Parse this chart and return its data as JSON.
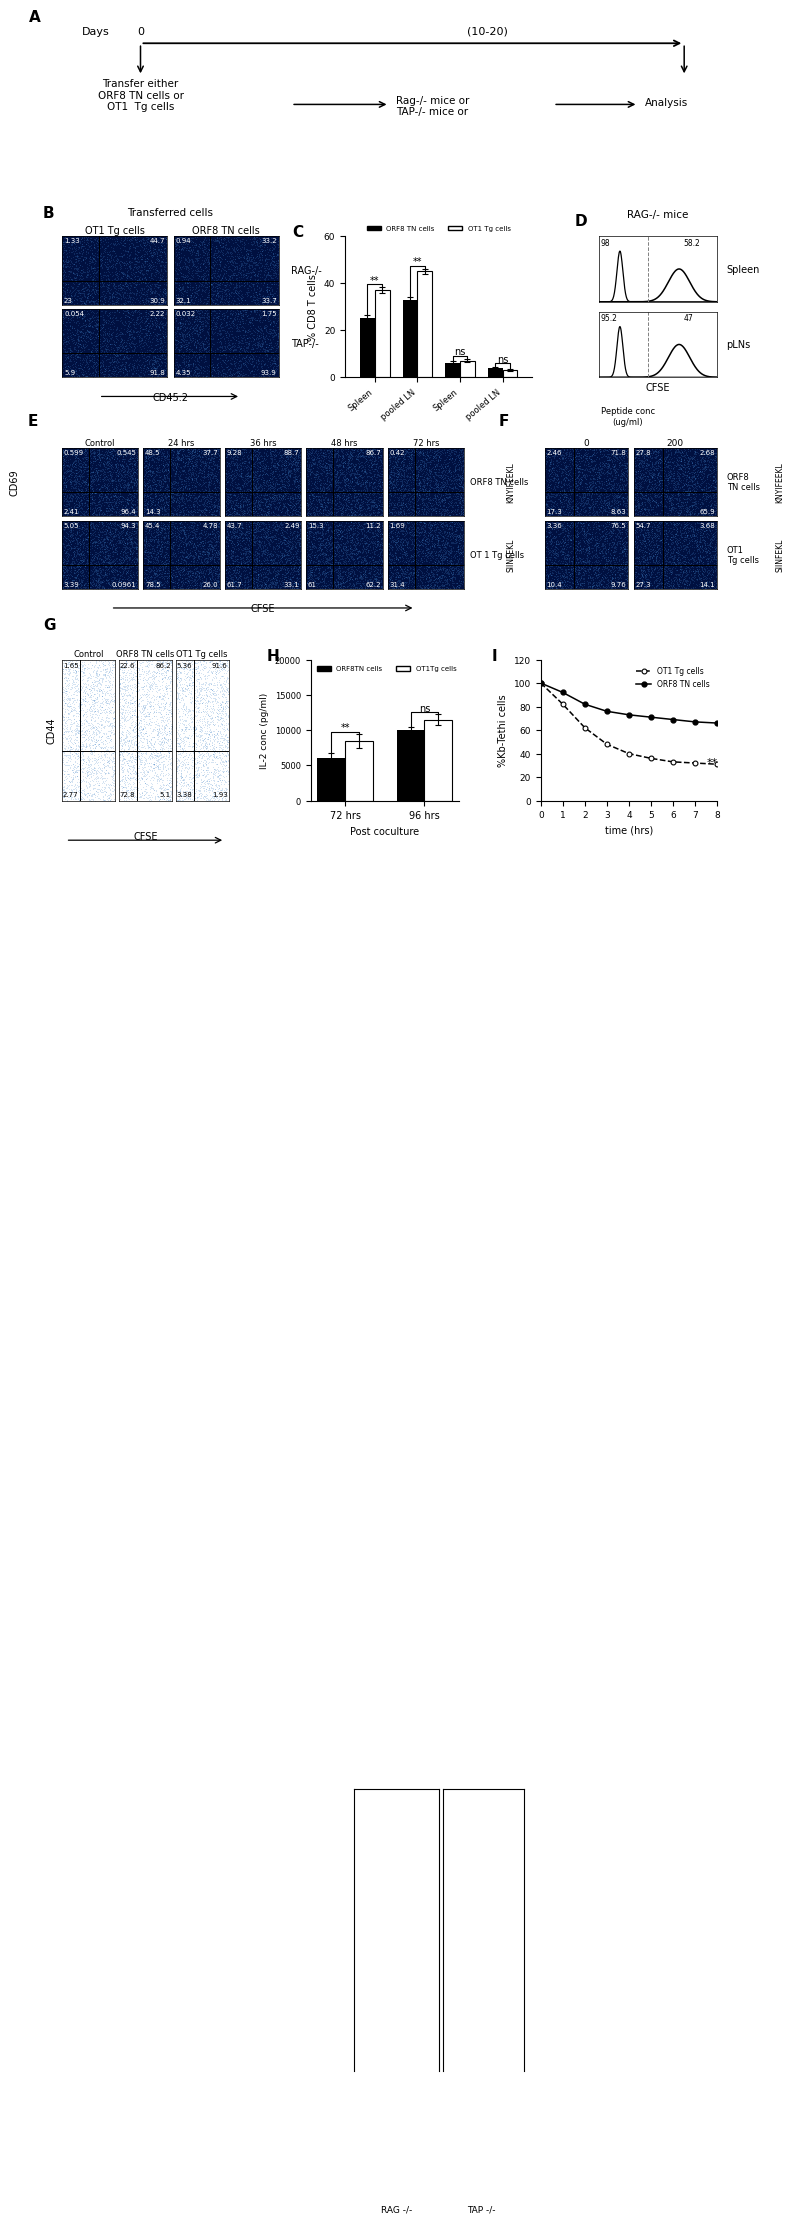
{
  "panel_A": {
    "timeline_label": "Days",
    "day0": "0",
    "day_range": "(10-20)",
    "box1_text": "Transfer either\nORF8 TN cells or\nOT1  Tg cells",
    "box2_text": "Rag-/- mice or\nTAP-/- mice or",
    "box3_text": "Analysis"
  },
  "panel_B": {
    "title": "Transferred cells",
    "col1": "OT1 Tg cells",
    "col2": "ORF8 TN cells",
    "row1_label": "RAG-/-",
    "row2_label": "TAP-/-",
    "quad_RAG_OT1": [
      "1.33",
      "44.7",
      "23",
      "30.9"
    ],
    "quad_RAG_ORF8": [
      "0.94",
      "33.2",
      "32.1",
      "33.7"
    ],
    "quad_TAP_OT1": [
      "0.054",
      "2.22",
      "5.9",
      "91.8"
    ],
    "quad_TAP_ORF8": [
      "0.032",
      "1.75",
      "4.35",
      "93.9"
    ],
    "xlabel": "CD45.2"
  },
  "panel_C": {
    "ylabel": "% CD8 T cells",
    "ylim": [
      0,
      60
    ],
    "categories": [
      "Spleen",
      "pooled LN",
      "Spleen",
      "pooled LN"
    ],
    "orf8_values": [
      25,
      33,
      6,
      4
    ],
    "ot1_values": [
      37,
      45,
      7,
      3
    ],
    "orf8_errors": [
      1.5,
      1.2,
      0.8,
      0.5
    ],
    "ot1_errors": [
      1.2,
      1.0,
      0.7,
      0.4
    ],
    "sig_labels": [
      "**",
      "**",
      "ns",
      "ns"
    ],
    "legend_orf8": "ORF8 TN cells",
    "legend_ot1": "OT1 Tg cells",
    "group1_label": "RAG -/-",
    "group2_label": "TAP -/-"
  },
  "panel_D": {
    "title": "RAG-/- mice",
    "row1_label": "Spleen",
    "row2_label": "pLNs",
    "xlabel": "CFSE",
    "values_spleen": [
      "98",
      "58.2"
    ],
    "values_plns": [
      "95.2",
      "47"
    ]
  },
  "panel_E": {
    "col_labels": [
      "Control",
      "24 hrs",
      "36 hrs",
      "48 hrs",
      "72 hrs"
    ],
    "row0_label": "ORF8 TN cells",
    "row1_label": "OT 1 Tg cells",
    "xlabel": "CFSE",
    "ylabel": "CD69",
    "right_label0": "KNYIFEEKL",
    "right_label1": "SIINFEKL",
    "quad_r0c0": [
      "0.599",
      "0.545",
      "2.41",
      "96.4"
    ],
    "quad_r0c1": [
      "48.5",
      "37.7",
      "14.3",
      ""
    ],
    "quad_r0c2": [
      "9.28",
      "88.7",
      "",
      ""
    ],
    "quad_r0c3": [
      "",
      "86.7",
      "",
      ""
    ],
    "quad_r0c4": [
      "0.42",
      "",
      "",
      ""
    ],
    "quad_r1c0": [
      "5.05",
      "94.3",
      "3.39",
      "0.0961"
    ],
    "quad_r1c1": [
      "45.4",
      "4.78",
      "78.5",
      "26.0"
    ],
    "quad_r1c2": [
      "43.7",
      "2.49",
      "61.7",
      "33.1"
    ],
    "quad_r1c3": [
      "15.3",
      "11.2",
      "61",
      "62.2"
    ],
    "quad_r1c4": [
      "1.69",
      "",
      "31.4",
      ""
    ]
  },
  "panel_F": {
    "col_labels": [
      "0",
      "200"
    ],
    "peptide_label": "Peptide conc\n(ug/ml)",
    "right_label0": "KNYIFEEKL",
    "right_label1": "SIINFEKL",
    "row0_label": "ORF8\nTN cells",
    "row1_label": "OT1\nTg cells",
    "quad_r0c0": [
      "2.46",
      "71.8",
      "17.3",
      "8.63"
    ],
    "quad_r0c1": [
      "27.8",
      "2.68",
      "",
      "65.9"
    ],
    "quad_r1c0": [
      "3.36",
      "76.5",
      "10.4",
      "9.76"
    ],
    "quad_r1c1": [
      "54.7",
      "3.68",
      "27.3",
      "14.1"
    ]
  },
  "panel_G": {
    "col_labels": [
      "Control",
      "ORF8 TN cells",
      "OT1 Tg cells"
    ],
    "xlabel": "CFSE",
    "ylabel": "CD44",
    "quad_c0": [
      "1.65",
      "",
      "2.77",
      ""
    ],
    "quad_c1": [
      "22.6",
      "86.2",
      "72.8",
      "5.1"
    ],
    "quad_c2": [
      "5.36",
      "91.6",
      "3.38",
      "1.93"
    ]
  },
  "panel_H": {
    "xlabel": "Post coculture",
    "ylabel": "IL-2 conc (pg/ml)",
    "ylim": [
      0,
      20000
    ],
    "yticks": [
      0,
      5000,
      10000,
      15000,
      20000
    ],
    "timepoints": [
      "72 hrs",
      "96 hrs"
    ],
    "orf8_values": [
      6000,
      10000
    ],
    "ot1_values": [
      8500,
      11500
    ],
    "orf8_errors": [
      800,
      500
    ],
    "ot1_errors": [
      1000,
      800
    ],
    "sig_labels": [
      "**",
      "ns"
    ],
    "legend_orf8": "ORF8TN cells",
    "legend_ot1": "OT1Tg cells"
  },
  "panel_I": {
    "xlabel": "time (hrs)",
    "ylabel": "%Kb-Tethi cells",
    "xlim": [
      0,
      8
    ],
    "ylim": [
      0,
      120
    ],
    "yticks": [
      0,
      20,
      40,
      60,
      80,
      100,
      120
    ],
    "xticks": [
      0,
      1,
      2,
      3,
      4,
      5,
      6,
      7,
      8
    ],
    "ot1_x": [
      0,
      1,
      2,
      3,
      4,
      5,
      6,
      7,
      8
    ],
    "ot1_y": [
      100,
      82,
      62,
      48,
      40,
      36,
      33,
      32,
      31
    ],
    "orf8_x": [
      0,
      1,
      2,
      3,
      4,
      5,
      6,
      7,
      8
    ],
    "orf8_y": [
      100,
      92,
      82,
      76,
      73,
      71,
      69,
      67,
      66
    ],
    "legend_ot1": "OT1 Tg cells",
    "legend_orf8": "ORF8 TN cells",
    "sig_label": "**"
  },
  "bg_color": "#ffffff"
}
